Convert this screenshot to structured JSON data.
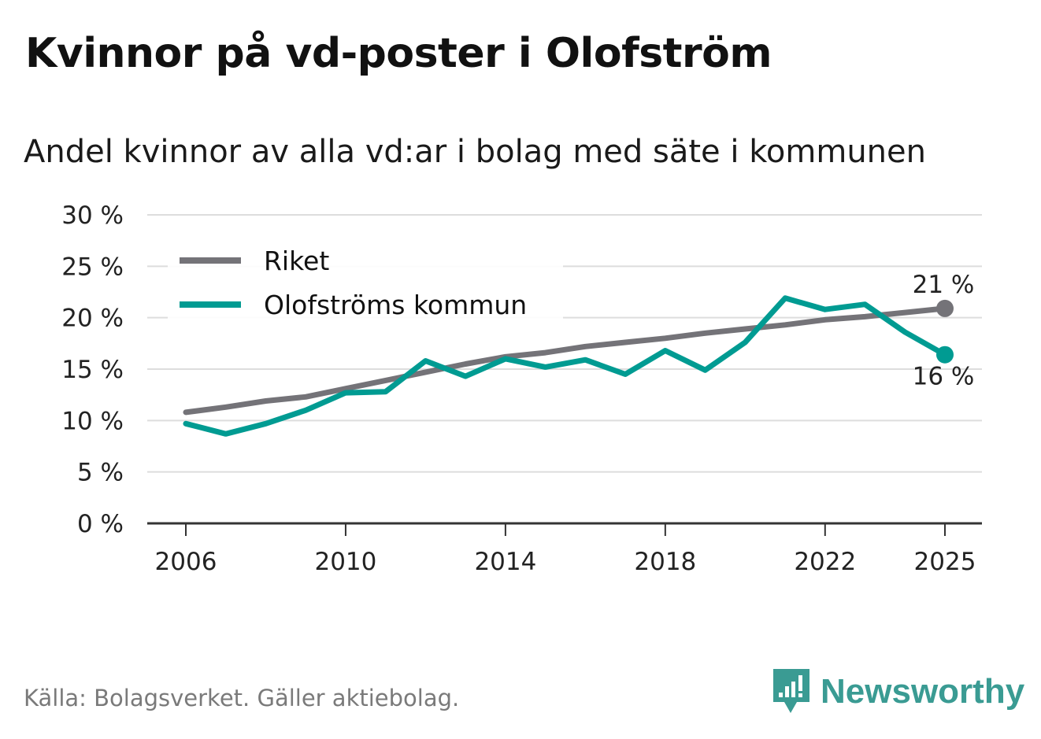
{
  "header": {
    "title": "Kvinnor på vd-poster i Olofström",
    "subtitle": "Andel kvinnor av alla vd:ar i bolag med säte i kommunen"
  },
  "footer": {
    "source": "Källa: Bolagsverket. Gäller aktiebolag.",
    "brand": "Newsworthy"
  },
  "colors": {
    "riket": "#747378",
    "kommun": "#009b92",
    "brand": "#3a9b93",
    "grid": "#dddddd",
    "axis": "#333333"
  },
  "chart_data": {
    "type": "line",
    "title": "Kvinnor på vd-poster i Olofström",
    "subtitle": "Andel kvinnor av alla vd:ar i bolag med säte i kommunen",
    "xlabel": "",
    "ylabel": "",
    "x": [
      2006,
      2007,
      2008,
      2009,
      2010,
      2011,
      2012,
      2013,
      2014,
      2015,
      2016,
      2017,
      2018,
      2019,
      2020,
      2021,
      2022,
      2023,
      2024,
      2025
    ],
    "x_ticks": [
      2006,
      2010,
      2014,
      2018,
      2022,
      2025
    ],
    "x_tick_labels": [
      "2006",
      "2010",
      "2014",
      "2018",
      "2022",
      "2025"
    ],
    "ylim": [
      0,
      30
    ],
    "y_ticks": [
      0,
      5,
      10,
      15,
      20,
      25,
      30
    ],
    "y_tick_labels": [
      "0 %",
      "5 %",
      "10 %",
      "15 %",
      "20 %",
      "25 %",
      "30 %"
    ],
    "grid": true,
    "legend_position": "top-left",
    "series": [
      {
        "name": "Riket",
        "color": "#747378",
        "values": [
          10.8,
          11.3,
          11.9,
          12.3,
          13.1,
          13.9,
          14.7,
          15.5,
          16.2,
          16.6,
          17.2,
          17.6,
          18.0,
          18.5,
          18.9,
          19.3,
          19.8,
          20.1,
          20.5,
          20.9
        ],
        "end_label": "21 %"
      },
      {
        "name": "Olofströms kommun",
        "color": "#009b92",
        "values": [
          9.7,
          8.7,
          9.7,
          11.0,
          12.7,
          12.8,
          15.8,
          14.3,
          16.0,
          15.2,
          15.9,
          14.5,
          16.8,
          14.9,
          17.6,
          21.9,
          20.8,
          21.3,
          18.6,
          16.4
        ],
        "end_label": "16 %"
      }
    ]
  }
}
